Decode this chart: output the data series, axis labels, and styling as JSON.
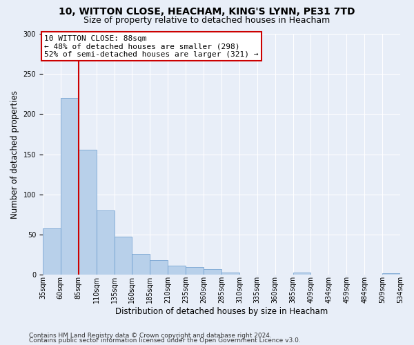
{
  "title_line1": "10, WITTON CLOSE, HEACHAM, KING'S LYNN, PE31 7TD",
  "title_line2": "Size of property relative to detached houses in Heacham",
  "xlabel": "Distribution of detached houses by size in Heacham",
  "ylabel": "Number of detached properties",
  "bar_values": [
    58,
    220,
    156,
    80,
    47,
    26,
    18,
    11,
    10,
    7,
    3,
    0,
    0,
    0,
    3,
    0,
    0,
    0,
    0,
    2
  ],
  "tick_labels": [
    "35sqm",
    "60sqm",
    "85sqm",
    "110sqm",
    "135sqm",
    "160sqm",
    "185sqm",
    "210sqm",
    "235sqm",
    "260sqm",
    "285sqm",
    "310sqm",
    "335sqm",
    "360sqm",
    "385sqm",
    "409sqm",
    "434sqm",
    "459sqm",
    "484sqm",
    "509sqm",
    "534sqm"
  ],
  "bar_color": "#b8d0ea",
  "bar_edge_color": "#6699cc",
  "vline_color": "#cc0000",
  "annotation_text": "10 WITTON CLOSE: 88sqm\n← 48% of detached houses are smaller (298)\n52% of semi-detached houses are larger (321) →",
  "annotation_box_facecolor": "#ffffff",
  "annotation_box_edgecolor": "#cc0000",
  "ylim_max": 300,
  "yticks": [
    0,
    50,
    100,
    150,
    200,
    250,
    300
  ],
  "footer_line1": "Contains HM Land Registry data © Crown copyright and database right 2024.",
  "footer_line2": "Contains public sector information licensed under the Open Government Licence v3.0.",
  "bg_color": "#e8eef8",
  "grid_color": "#ffffff",
  "title_fontsize": 10,
  "subtitle_fontsize": 9,
  "ylabel_fontsize": 8.5,
  "xlabel_fontsize": 8.5,
  "tick_fontsize": 7,
  "annotation_fontsize": 8,
  "footer_fontsize": 6.5
}
